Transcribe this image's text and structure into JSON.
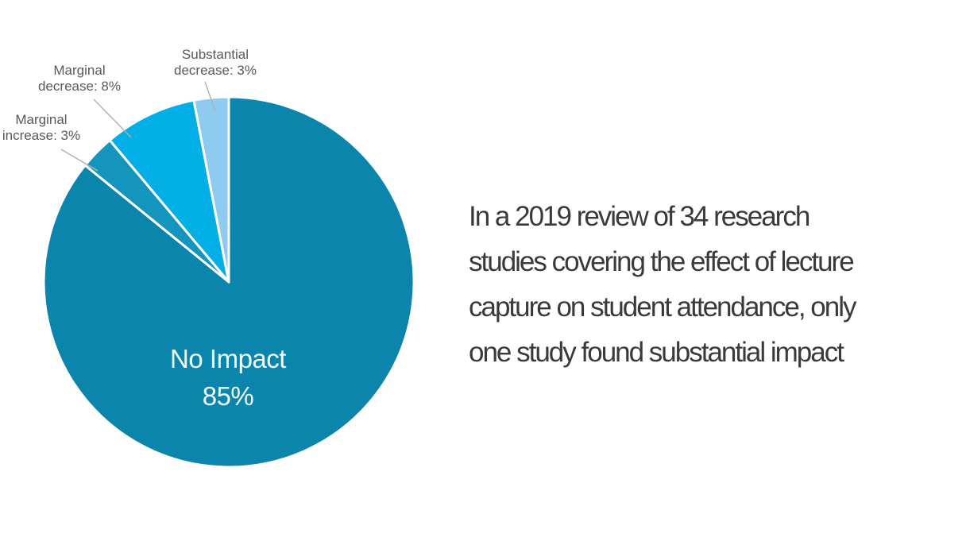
{
  "page": {
    "background_color": "#FFFFFF"
  },
  "chart_data": {
    "type": "pie",
    "title": "",
    "direction": "clockwise",
    "start_angle_deg": 0,
    "legend_position": "none",
    "labels_style": "callouts-outside-with-leader-lines",
    "separator_color": "#FFFFFF",
    "callout_line_color": "#B0B0B0",
    "outside_label_color": "#595959",
    "inside_label_color": "#F2FAFD",
    "slices": [
      {
        "id": "no-impact",
        "label": "No Impact",
        "value": 85,
        "unit": "%",
        "color": "#0C85AC",
        "label_display": "No Impact\n85%",
        "label_placement": "inside"
      },
      {
        "id": "marginal-increase",
        "label": "Marginal increase",
        "value": 3,
        "unit": "%",
        "color": "#1495BD",
        "label_display": "Marginal\nincrease: 3%",
        "label_placement": "outside"
      },
      {
        "id": "marginal-decrease",
        "label": "Marginal decrease",
        "value": 8,
        "unit": "%",
        "color": "#02AEE6",
        "label_display": "Marginal\ndecrease: 8%",
        "label_placement": "outside"
      },
      {
        "id": "substantial-decrease",
        "label": "Substantial decrease",
        "value": 3,
        "unit": "%",
        "color": "#8FCBF0",
        "label_display": "Substantial\ndecrease: 3%",
        "label_placement": "outside"
      }
    ]
  },
  "caption": {
    "full_text": "In a 2019 review of 34 research studies covering the effect of lecture capture on student attendance, only one study found substantial impact",
    "lines": [
      "In a 2019 review of 34 research",
      "studies covering the effect of lecture",
      "capture on student attendance, only",
      "one study found substantial impact"
    ],
    "color": "#3A3A3A"
  }
}
